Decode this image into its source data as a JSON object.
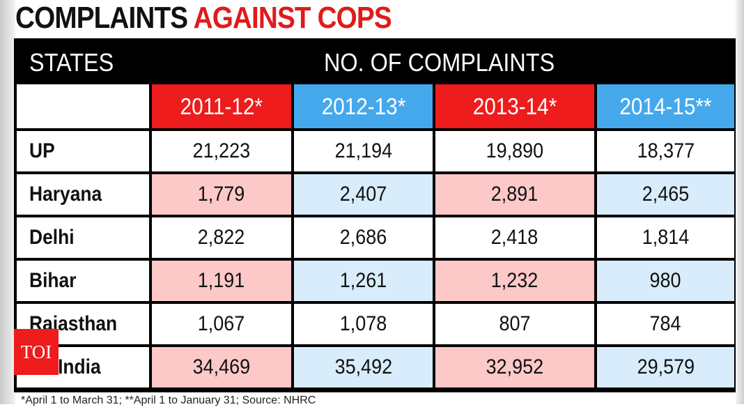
{
  "title": {
    "part1": "COMPLAINTS",
    "part2": "AGAINST COPS"
  },
  "table": {
    "header_states": "STATES",
    "header_complaints": "NO. OF COMPLAINTS",
    "years": [
      "2011-12*",
      "2012-13*",
      "2013-14*",
      "2014-15**"
    ],
    "rows": [
      {
        "state": "UP",
        "values": [
          "21,223",
          "21,194",
          "19,890",
          "18,377"
        ]
      },
      {
        "state": "Haryana",
        "values": [
          "1,779",
          "2,407",
          "2,891",
          "2,465"
        ]
      },
      {
        "state": "Delhi",
        "values": [
          "2,822",
          "2,686",
          "2,418",
          "1,814"
        ]
      },
      {
        "state": "Bihar",
        "values": [
          "1,191",
          "1,261",
          "1,232",
          "980"
        ]
      },
      {
        "state": "Rajasthan",
        "values": [
          "1,067",
          "1,078",
          "807",
          "784"
        ]
      },
      {
        "state": "All India",
        "values": [
          "34,469",
          "35,492",
          "32,952",
          "29,579"
        ]
      }
    ]
  },
  "footnote": "*April 1 to March 31; **April 1 to January 31; Source: NHRC",
  "logo": "TOI",
  "colors": {
    "red": "#ee1c1c",
    "blue": "#46a8ec",
    "pink": "#fcc8c8",
    "light_blue": "#d8ecfb",
    "title_red": "#e01b1b"
  },
  "chart_data": {
    "type": "table",
    "title": "Complaints Against Cops",
    "columns": [
      "States",
      "2011-12*",
      "2012-13*",
      "2013-14*",
      "2014-15**"
    ],
    "rows": [
      [
        "UP",
        21223,
        21194,
        19890,
        18377
      ],
      [
        "Haryana",
        1779,
        2407,
        2891,
        2465
      ],
      [
        "Delhi",
        2822,
        2686,
        2418,
        1814
      ],
      [
        "Bihar",
        1191,
        1261,
        1232,
        980
      ],
      [
        "Rajasthan",
        1067,
        1078,
        807,
        784
      ],
      [
        "All India",
        34469,
        35492,
        32952,
        29579
      ]
    ]
  }
}
